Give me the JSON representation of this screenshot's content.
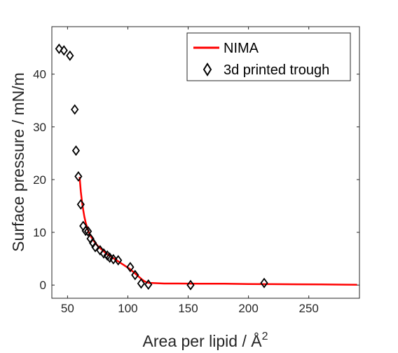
{
  "chart_data": {
    "type": "line",
    "xlabel": "Area per lipid / Å",
    "xlabel_superscript": "2",
    "ylabel": "Surface pressure / mN/m",
    "xlim": [
      37,
      292
    ],
    "ylim": [
      -2.5,
      49
    ],
    "xticks": [
      50,
      100,
      150,
      200,
      250
    ],
    "yticks": [
      0,
      10,
      20,
      30,
      40
    ],
    "grid": false,
    "legend_position": "top-right",
    "series": [
      {
        "name": "NIMA",
        "kind": "line",
        "color": "#ff0000",
        "x": [
          60,
          61,
          62,
          63,
          64,
          65,
          66,
          67,
          68,
          70,
          72,
          74,
          76,
          78,
          80,
          82,
          84,
          86,
          88,
          90,
          92,
          94,
          96,
          98,
          100,
          102,
          104,
          106,
          108,
          110,
          112,
          114,
          116,
          118,
          120,
          125,
          130,
          140,
          150,
          160,
          180,
          200,
          220,
          240,
          260,
          280,
          290
        ],
        "y": [
          20.5,
          17.8,
          15.8,
          14.2,
          12.9,
          11.9,
          11.1,
          10.4,
          9.8,
          9.0,
          8.3,
          7.7,
          7.2,
          6.8,
          6.4,
          6.0,
          5.7,
          5.4,
          5.1,
          4.8,
          4.5,
          4.2,
          3.9,
          3.6,
          3.3,
          3.0,
          2.6,
          2.2,
          1.8,
          1.4,
          1.0,
          0.7,
          0.5,
          0.4,
          0.4,
          0.35,
          0.3,
          0.3,
          0.28,
          0.25,
          0.25,
          0.2,
          0.18,
          0.15,
          0.12,
          0.08,
          0.05
        ]
      },
      {
        "name": "3d printed trough",
        "kind": "scatter",
        "marker": "diamond",
        "color": "#000000",
        "x": [
          43,
          47,
          52,
          56,
          57,
          59,
          61,
          63,
          65,
          67,
          69,
          71,
          73,
          77,
          80,
          83,
          85,
          88,
          92,
          102,
          106,
          111,
          117,
          152,
          213
        ],
        "y": [
          44.8,
          44.5,
          43.5,
          33.3,
          25.5,
          20.6,
          15.3,
          11.2,
          10.3,
          10.2,
          8.8,
          8.0,
          7.2,
          6.6,
          6.0,
          5.6,
          5.2,
          4.9,
          4.7,
          3.4,
          1.9,
          0.3,
          0.1,
          0.0,
          0.4
        ]
      }
    ]
  }
}
